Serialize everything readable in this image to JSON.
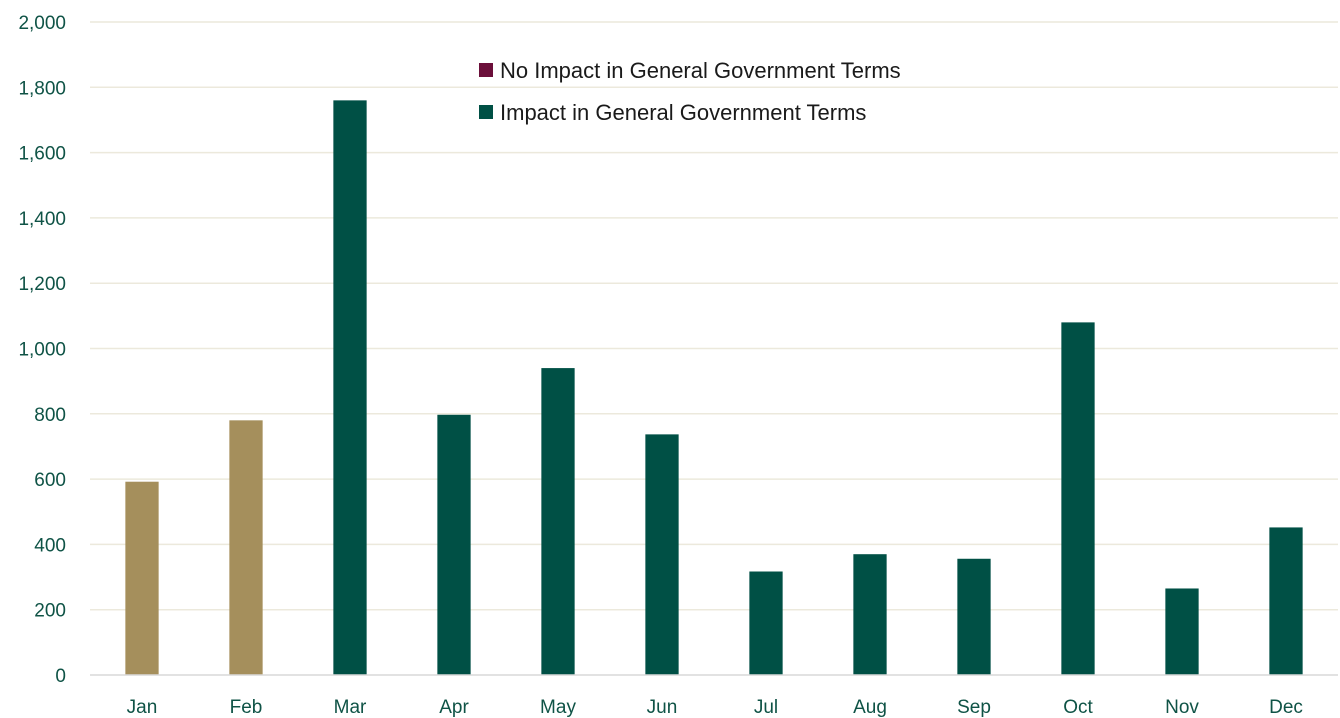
{
  "chart_data": {
    "type": "bar",
    "title": "",
    "xlabel": "",
    "ylabel": "",
    "categories": [
      "Jan",
      "Feb",
      "Mar",
      "Apr",
      "May",
      "Jun",
      "Jul",
      "Aug",
      "Sep",
      "Oct",
      "Nov",
      "Dec"
    ],
    "values": [
      592,
      780,
      1760,
      797,
      940,
      737,
      317,
      370,
      356,
      1080,
      265,
      452
    ],
    "bar_colors": [
      "#a58f5c",
      "#a58f5c",
      "#005045",
      "#005045",
      "#005045",
      "#005045",
      "#005045",
      "#005045",
      "#005045",
      "#005045",
      "#005045",
      "#005045"
    ],
    "ylim": [
      0,
      2000
    ],
    "yticks": [
      0,
      200,
      400,
      600,
      800,
      1000,
      1200,
      1400,
      1600,
      1800,
      2000
    ],
    "ytick_labels": [
      "0",
      "200",
      "400",
      "600",
      "800",
      "1,000",
      "1,200",
      "1,400",
      "1,600",
      "1,800",
      "2,000"
    ],
    "grid": true,
    "gridline_color": "#ece9dc",
    "axis_text_color": "#0f5346",
    "legend": {
      "placement": "top-center",
      "entries": [
        {
          "label": "No Impact in General Government Terms",
          "color": "#6b0f3a"
        },
        {
          "label": "Impact in General Government Terms",
          "color": "#005045"
        }
      ]
    }
  }
}
